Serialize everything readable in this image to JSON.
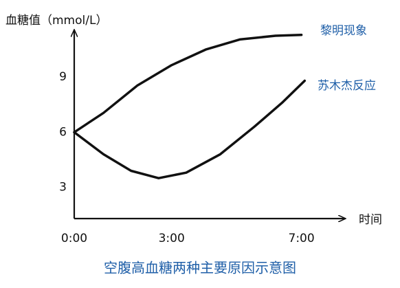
{
  "chart_data": {
    "type": "line",
    "title": "空腹高血糖两种主要原因示意图",
    "x_label": "时间",
    "y_label": "血糖值（mmol/L）",
    "xlim": [
      0,
      8.3
    ],
    "ylim": [
      1.3,
      11.7
    ],
    "xticks": [
      {
        "value": 0,
        "label": "0:00"
      },
      {
        "value": 3,
        "label": "3:00"
      },
      {
        "value": 7,
        "label": "7:00"
      }
    ],
    "yticks": [
      3,
      6,
      9
    ],
    "grid": false,
    "series": [
      {
        "name": "黎明现象",
        "color": "#111111",
        "x": [
          0,
          0.9,
          1.95,
          3,
          4.05,
          5.1,
          6.2,
          7
        ],
        "values": [
          6,
          7.05,
          8.55,
          9.65,
          10.5,
          11.05,
          11.25,
          11.3
        ]
      },
      {
        "name": "苏木杰反应",
        "color": "#111111",
        "x": [
          0,
          0.9,
          1.75,
          2.6,
          3.45,
          4.5,
          5.55,
          6.4,
          7.1
        ],
        "values": [
          6,
          4.8,
          3.9,
          3.5,
          3.8,
          4.8,
          6.3,
          7.6,
          8.8
        ]
      }
    ]
  }
}
